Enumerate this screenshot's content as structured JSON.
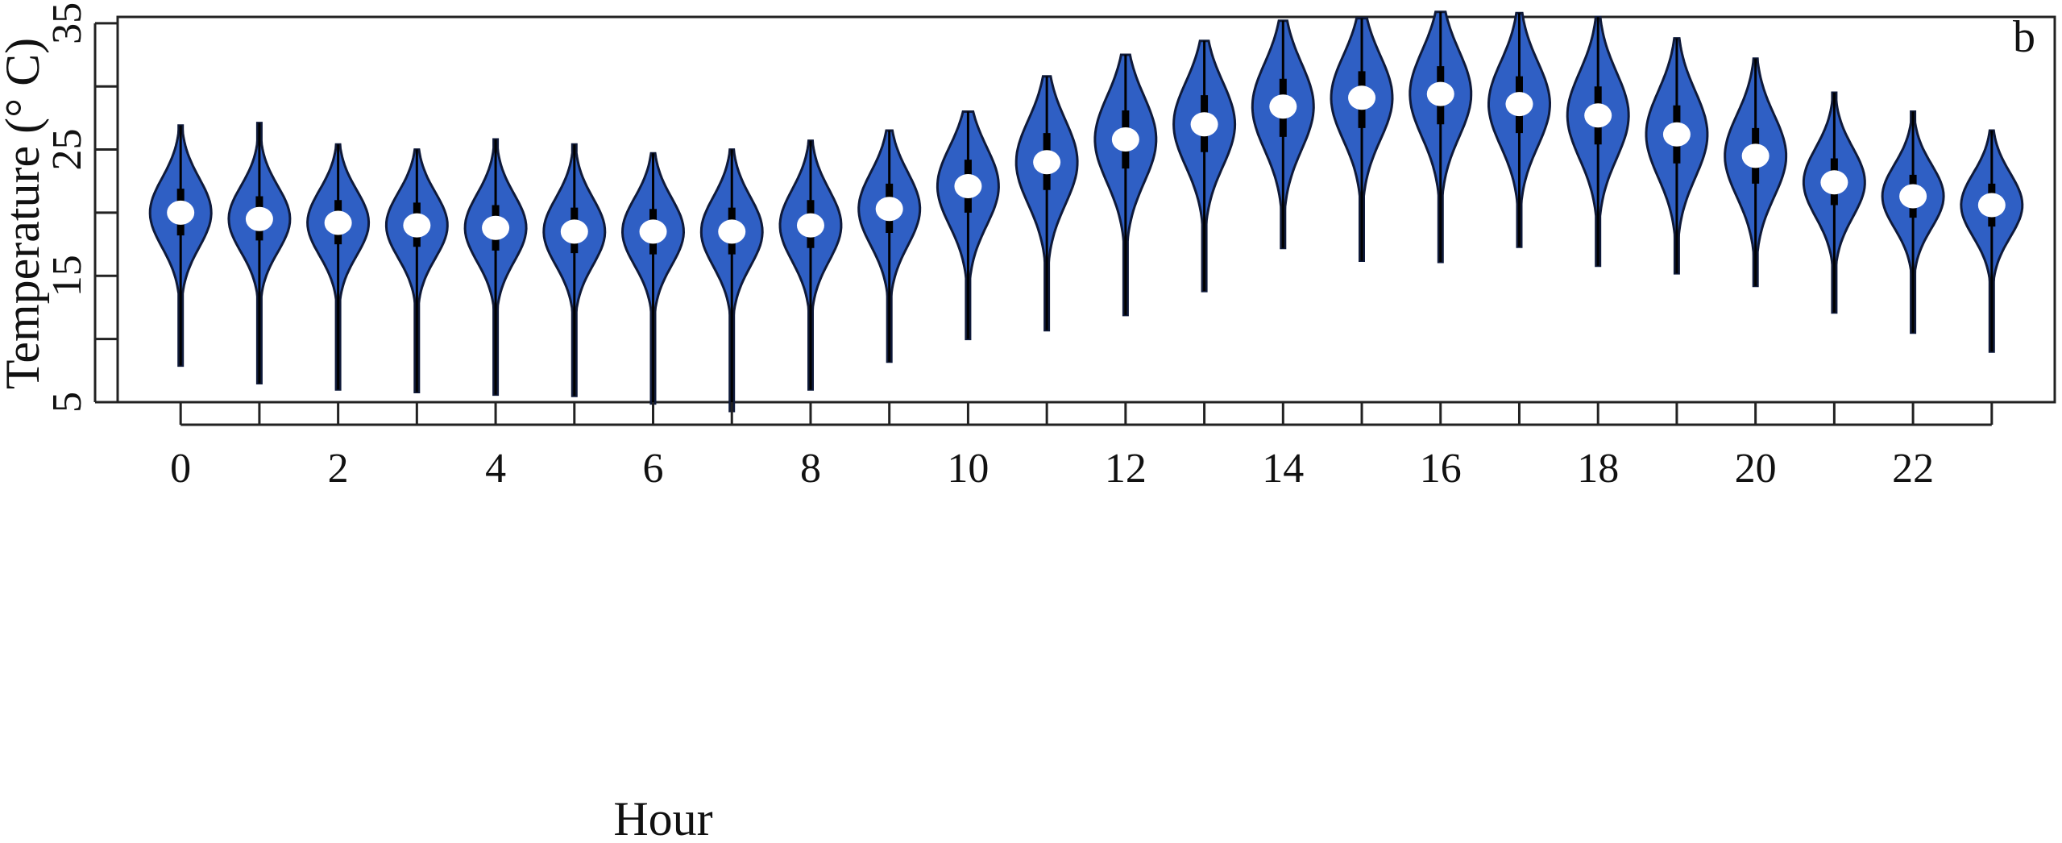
{
  "chart_data": {
    "type": "violin",
    "panel_label": "b",
    "xlabel": "Hour",
    "ylabel": "Temperature (° C)",
    "ylim": [
      5,
      35.5
    ],
    "xlim": [
      -0.8,
      23.8
    ],
    "y_ticks": [
      5,
      15,
      25,
      35
    ],
    "y_minor_ticks": [
      10,
      20,
      30
    ],
    "x_ticks": [
      0,
      1,
      2,
      3,
      4,
      5,
      6,
      7,
      8,
      9,
      10,
      11,
      12,
      13,
      14,
      15,
      16,
      17,
      18,
      19,
      20,
      21,
      22,
      23
    ],
    "x_tick_labels": [
      0,
      2,
      4,
      6,
      8,
      10,
      12,
      14,
      16,
      18,
      20,
      22
    ],
    "grid": false,
    "colors": {
      "violin_fill": "#2f5fc4",
      "violin_edge": "#0f1a3a",
      "median_marker": "#ffffff"
    },
    "violins": [
      {
        "hour": 0,
        "min": 7.9,
        "q1": 18.2,
        "median": 20.0,
        "q3": 21.9,
        "max": 26.9
      },
      {
        "hour": 1,
        "min": 6.5,
        "q1": 17.8,
        "median": 19.5,
        "q3": 21.3,
        "max": 27.1
      },
      {
        "hour": 2,
        "min": 6.0,
        "q1": 17.5,
        "median": 19.2,
        "q3": 21.0,
        "max": 25.4
      },
      {
        "hour": 3,
        "min": 5.8,
        "q1": 17.3,
        "median": 19.0,
        "q3": 20.8,
        "max": 25.0
      },
      {
        "hour": 4,
        "min": 5.6,
        "q1": 17.0,
        "median": 18.8,
        "q3": 20.6,
        "max": 25.8
      },
      {
        "hour": 5,
        "min": 5.5,
        "q1": 16.8,
        "median": 18.5,
        "q3": 20.4,
        "max": 25.4
      },
      {
        "hour": 6,
        "min": 4.9,
        "q1": 16.7,
        "median": 18.5,
        "q3": 20.3,
        "max": 24.7
      },
      {
        "hour": 7,
        "min": 4.3,
        "q1": 16.7,
        "median": 18.5,
        "q3": 20.4,
        "max": 25.0
      },
      {
        "hour": 8,
        "min": 6.0,
        "q1": 17.2,
        "median": 19.0,
        "q3": 21.0,
        "max": 25.7
      },
      {
        "hour": 9,
        "min": 8.2,
        "q1": 18.4,
        "median": 20.3,
        "q3": 22.3,
        "max": 26.5
      },
      {
        "hour": 10,
        "min": 10.0,
        "q1": 20.0,
        "median": 22.1,
        "q3": 24.2,
        "max": 28.0
      },
      {
        "hour": 11,
        "min": 10.7,
        "q1": 21.8,
        "median": 24.0,
        "q3": 26.3,
        "max": 30.8
      },
      {
        "hour": 12,
        "min": 11.9,
        "q1": 23.5,
        "median": 25.8,
        "q3": 28.1,
        "max": 32.5
      },
      {
        "hour": 13,
        "min": 13.8,
        "q1": 24.8,
        "median": 27.0,
        "q3": 29.3,
        "max": 33.6
      },
      {
        "hour": 14,
        "min": 17.2,
        "q1": 26.0,
        "median": 28.4,
        "q3": 30.6,
        "max": 35.2
      },
      {
        "hour": 15,
        "min": 16.2,
        "q1": 26.7,
        "median": 29.1,
        "q3": 31.2,
        "max": 35.4
      },
      {
        "hour": 16,
        "min": 16.1,
        "q1": 27.0,
        "median": 29.4,
        "q3": 31.6,
        "max": 35.9
      },
      {
        "hour": 17,
        "min": 17.3,
        "q1": 26.3,
        "median": 28.6,
        "q3": 30.8,
        "max": 35.8
      },
      {
        "hour": 18,
        "min": 15.8,
        "q1": 25.4,
        "median": 27.7,
        "q3": 30.0,
        "max": 35.5
      },
      {
        "hour": 19,
        "min": 15.2,
        "q1": 23.9,
        "median": 26.2,
        "q3": 28.5,
        "max": 33.8
      },
      {
        "hour": 20,
        "min": 14.2,
        "q1": 22.3,
        "median": 24.5,
        "q3": 26.7,
        "max": 32.2
      },
      {
        "hour": 21,
        "min": 12.1,
        "q1": 20.6,
        "median": 22.4,
        "q3": 24.3,
        "max": 29.5
      },
      {
        "hour": 22,
        "min": 10.5,
        "q1": 19.6,
        "median": 21.3,
        "q3": 23.0,
        "max": 28.0
      },
      {
        "hour": 23,
        "min": 9.0,
        "q1": 18.9,
        "median": 20.6,
        "q3": 22.3,
        "max": 26.5
      }
    ]
  }
}
